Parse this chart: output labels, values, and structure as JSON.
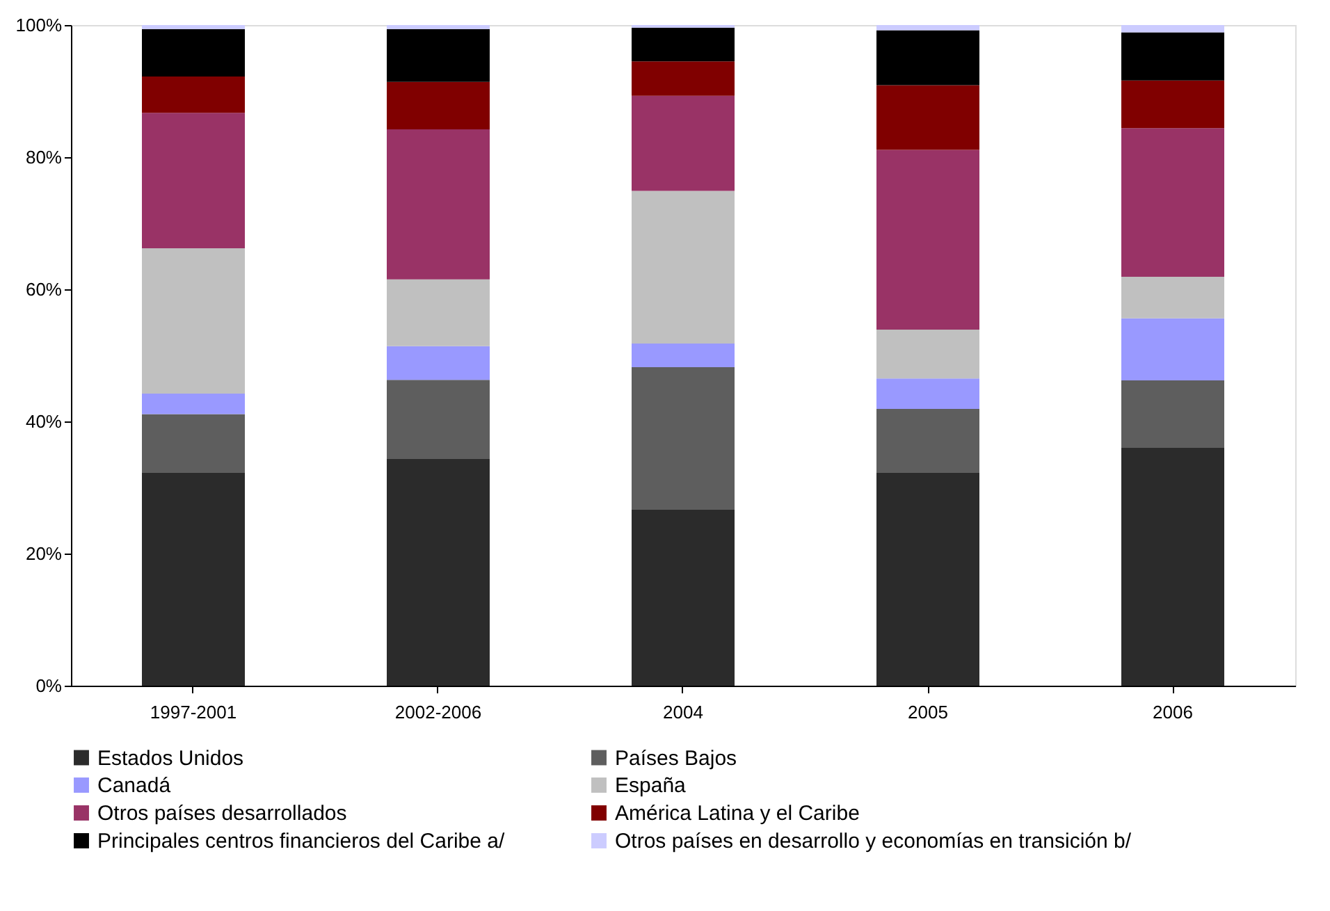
{
  "chart_data": {
    "type": "bar",
    "stacked": true,
    "categories": [
      "1997-2001",
      "2002-2006",
      "2004",
      "2005",
      "2006"
    ],
    "series": [
      {
        "name": "Estados Unidos",
        "color": "#2b2b2b",
        "values": [
          32.3,
          34.4,
          26.7,
          32.3,
          36.0
        ]
      },
      {
        "name": "Países Bajos",
        "color": "#5e5e5e",
        "values": [
          8.8,
          11.9,
          21.5,
          9.6,
          10.2
        ]
      },
      {
        "name": "Canadá",
        "color": "#9999ff",
        "values": [
          3.1,
          5.1,
          3.6,
          4.6,
          9.4
        ]
      },
      {
        "name": "España",
        "color": "#c0c0c0",
        "values": [
          22.0,
          10.1,
          23.1,
          7.4,
          6.3
        ]
      },
      {
        "name": "Otros países desarrollados",
        "color": "#993366",
        "values": [
          20.5,
          22.7,
          14.4,
          27.2,
          22.5
        ]
      },
      {
        "name": "América Latina y el Caribe",
        "color": "#800000",
        "values": [
          5.5,
          7.2,
          5.2,
          9.8,
          7.2
        ]
      },
      {
        "name": "Principales centros financieros del Caribe a/",
        "color": "#000000",
        "values": [
          7.2,
          8.0,
          5.1,
          8.3,
          7.3
        ]
      },
      {
        "name": "Otros países en desarrollo y economías en transición b/",
        "color": "#ccccff",
        "values": [
          0.6,
          0.6,
          0.4,
          0.8,
          1.1
        ]
      }
    ],
    "ylim": [
      0,
      100
    ],
    "yticks": [
      {
        "value": 0,
        "label": "0%"
      },
      {
        "value": 20,
        "label": "20%"
      },
      {
        "value": 40,
        "label": "40%"
      },
      {
        "value": 60,
        "label": "60%"
      },
      {
        "value": 80,
        "label": "80%"
      },
      {
        "value": 100,
        "label": "100%"
      }
    ],
    "grid": false,
    "legend": "bottom"
  }
}
